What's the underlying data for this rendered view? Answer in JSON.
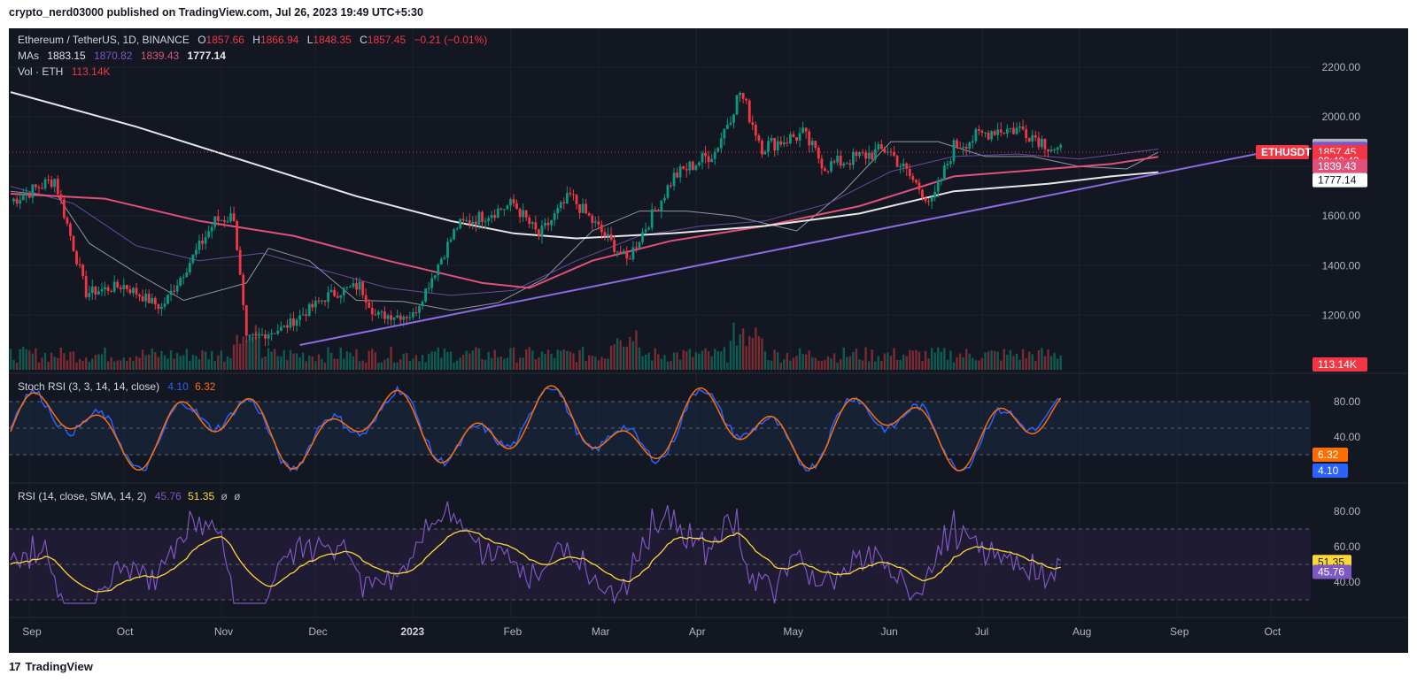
{
  "header": {
    "published_by": "crypto_nerd03000 published on TradingView.com, Jul 26, 2023 19:49 UTC+5:30"
  },
  "footer": {
    "brand_mark": "17",
    "brand": "TradingView"
  },
  "colors": {
    "background": "#131722",
    "up_candle": "#089981",
    "down_candle": "#f23645",
    "ma_20": "#b2b5be",
    "ma_50": "#7e57c2",
    "ma_100": "#e0517a",
    "ma_200": "#e6e6e6",
    "trendline": "#8c6be8",
    "stoch_k": "#2962ff",
    "stoch_d": "#ff6d00",
    "rsi": "#7e57c2",
    "rsi_sma": "#fdd835"
  },
  "legend": {
    "symbol": "Ethereum / TetherUS, 1D, BINANCE",
    "o_label": "O",
    "o_value": "1857.66",
    "h_label": "H",
    "h_value": "1866.94",
    "l_label": "L",
    "l_value": "1848.35",
    "c_label": "C",
    "c_value": "1857.45",
    "change": "−0.21 (−0.01%)",
    "mas_label": "MAs",
    "ma_values": [
      "1883.15",
      "1870.82",
      "1839.43",
      "1777.14"
    ],
    "vol_label": "Vol · ETH",
    "vol_value": "113.14K"
  },
  "stoch_legend": {
    "title": "Stoch RSI (3, 3, 14, 14, close)",
    "k": "4.10",
    "d": "6.32"
  },
  "rsi_legend": {
    "title": "RSI (14, close, SMA, 14, 2)",
    "rsi": "45.76",
    "sma": "51.35",
    "extra1": "ø",
    "extra2": "ø"
  },
  "price_axis": {
    "ticks": [
      "2200.00",
      "2000.00",
      "1600.00",
      "1400.00",
      "1200.00"
    ],
    "labels": [
      {
        "text": "1883.15",
        "value": 1883.15,
        "bg": "#b2b5be",
        "fg": "#131722"
      },
      {
        "text": "1870.82",
        "value": 1870.82,
        "bg": "#7e57c2",
        "fg": "#ffffff"
      },
      {
        "text": "1857.45",
        "value": 1857.45,
        "bg": "#f23645",
        "fg": "#ffffff"
      },
      {
        "text": "09:40:43",
        "value": 1822,
        "bg": "#f23645",
        "fg": "#ffffff"
      },
      {
        "text": "1839.43",
        "value": 1800,
        "bg": "#e0517a",
        "fg": "#ffffff"
      },
      {
        "text": "1777.14",
        "value": 1745,
        "bg": "#ffffff",
        "fg": "#131722"
      }
    ],
    "symbol_tag": "ETHUSDT",
    "volume_tag": "113.14K"
  },
  "stoch_axis": {
    "ticks": [
      "80.00",
      "40.00"
    ],
    "k_tag": "4.10",
    "d_tag": "6.32"
  },
  "rsi_axis": {
    "ticks": [
      "80.00",
      "60.00",
      "40.00"
    ],
    "sma_tag": "51.35",
    "rsi_tag": "45.76"
  },
  "time_axis": [
    "Sep",
    "Oct",
    "Nov",
    "Dec",
    "2023",
    "Feb",
    "Mar",
    "Apr",
    "May",
    "Jun",
    "Jul",
    "Aug",
    "Sep",
    "Oct"
  ],
  "chart_data": {
    "type": "candlestick",
    "title": "Ethereum / TetherUS, 1D, BINANCE",
    "x_range": [
      "2022-08-26",
      "2023-07-26"
    ],
    "y_range": [
      1080,
      2250
    ],
    "key_points": [
      {
        "date": "2022-08-26",
        "close": 1660
      },
      {
        "date": "2022-09-09",
        "close": 1750
      },
      {
        "date": "2022-09-19",
        "close": 1290
      },
      {
        "date": "2022-10-01",
        "close": 1320
      },
      {
        "date": "2022-10-13",
        "close": 1230
      },
      {
        "date": "2022-10-30",
        "close": 1580
      },
      {
        "date": "2022-11-05",
        "close": 1600
      },
      {
        "date": "2022-11-09",
        "close": 1100
      },
      {
        "date": "2022-11-21",
        "close": 1150
      },
      {
        "date": "2022-12-05",
        "close": 1280
      },
      {
        "date": "2022-12-15",
        "close": 1320
      },
      {
        "date": "2022-12-20",
        "close": 1200
      },
      {
        "date": "2023-01-01",
        "close": 1200
      },
      {
        "date": "2023-01-15",
        "close": 1560
      },
      {
        "date": "2023-02-02",
        "close": 1650
      },
      {
        "date": "2023-02-10",
        "close": 1520
      },
      {
        "date": "2023-02-20",
        "close": 1680
      },
      {
        "date": "2023-03-10",
        "close": 1420
      },
      {
        "date": "2023-03-25",
        "close": 1760
      },
      {
        "date": "2023-04-07",
        "close": 1860
      },
      {
        "date": "2023-04-15",
        "close": 2100
      },
      {
        "date": "2023-04-22",
        "close": 1880
      },
      {
        "date": "2023-05-05",
        "close": 1930
      },
      {
        "date": "2023-05-12",
        "close": 1800
      },
      {
        "date": "2023-06-01",
        "close": 1870
      },
      {
        "date": "2023-06-15",
        "close": 1650
      },
      {
        "date": "2023-06-22",
        "close": 1880
      },
      {
        "date": "2023-07-05",
        "close": 1950
      },
      {
        "date": "2023-07-14",
        "close": 1950
      },
      {
        "date": "2023-07-26",
        "close": 1857
      }
    ],
    "ma_lines": [
      {
        "name": "MA 20",
        "points": [
          [
            0,
            1700
          ],
          [
            15,
            1680
          ],
          [
            25,
            1490
          ],
          [
            40,
            1370
          ],
          [
            55,
            1260
          ],
          [
            75,
            1330
          ],
          [
            82,
            1470
          ],
          [
            95,
            1420
          ],
          [
            110,
            1260
          ],
          [
            125,
            1255
          ],
          [
            140,
            1220
          ],
          [
            155,
            1250
          ],
          [
            170,
            1350
          ],
          [
            185,
            1540
          ],
          [
            200,
            1620
          ],
          [
            215,
            1620
          ],
          [
            230,
            1600
          ],
          [
            250,
            1540
          ],
          [
            265,
            1700
          ],
          [
            280,
            1900
          ],
          [
            295,
            1900
          ],
          [
            310,
            1840
          ],
          [
            325,
            1840
          ],
          [
            340,
            1800
          ],
          [
            355,
            1790
          ],
          [
            365,
            1858
          ]
        ]
      },
      {
        "name": "MA 50",
        "points": [
          [
            0,
            1720
          ],
          [
            20,
            1650
          ],
          [
            40,
            1480
          ],
          [
            60,
            1420
          ],
          [
            80,
            1450
          ],
          [
            100,
            1380
          ],
          [
            120,
            1310
          ],
          [
            140,
            1280
          ],
          [
            160,
            1300
          ],
          [
            180,
            1420
          ],
          [
            200,
            1520
          ],
          [
            220,
            1560
          ],
          [
            240,
            1580
          ],
          [
            260,
            1650
          ],
          [
            280,
            1780
          ],
          [
            300,
            1840
          ],
          [
            320,
            1850
          ],
          [
            340,
            1830
          ],
          [
            365,
            1870
          ]
        ]
      },
      {
        "name": "MA 100",
        "points": [
          [
            0,
            1690
          ],
          [
            30,
            1670
          ],
          [
            60,
            1580
          ],
          [
            90,
            1520
          ],
          [
            120,
            1420
          ],
          [
            150,
            1330
          ],
          [
            165,
            1310
          ],
          [
            185,
            1420
          ],
          [
            210,
            1500
          ],
          [
            240,
            1560
          ],
          [
            270,
            1640
          ],
          [
            300,
            1760
          ],
          [
            330,
            1790
          ],
          [
            350,
            1810
          ],
          [
            365,
            1839
          ]
        ]
      },
      {
        "name": "MA 200",
        "points": [
          [
            0,
            2100
          ],
          [
            40,
            1960
          ],
          [
            80,
            1800
          ],
          [
            110,
            1680
          ],
          [
            140,
            1580
          ],
          [
            160,
            1530
          ],
          [
            180,
            1510
          ],
          [
            210,
            1530
          ],
          [
            240,
            1560
          ],
          [
            270,
            1610
          ],
          [
            300,
            1700
          ],
          [
            330,
            1730
          ],
          [
            350,
            1760
          ],
          [
            365,
            1777
          ]
        ]
      }
    ],
    "trendline": {
      "from": {
        "day": 92,
        "price": 1080
      },
      "to": {
        "day": 400,
        "price": 1860
      }
    },
    "current_price": 1857.45,
    "stoch_rsi": {
      "k": 4.1,
      "d": 6.32,
      "levels": [
        80,
        20
      ]
    },
    "rsi": {
      "value": 45.76,
      "sma": 51.35,
      "levels": [
        70,
        50,
        30
      ]
    },
    "volume_last": "113.14K"
  }
}
